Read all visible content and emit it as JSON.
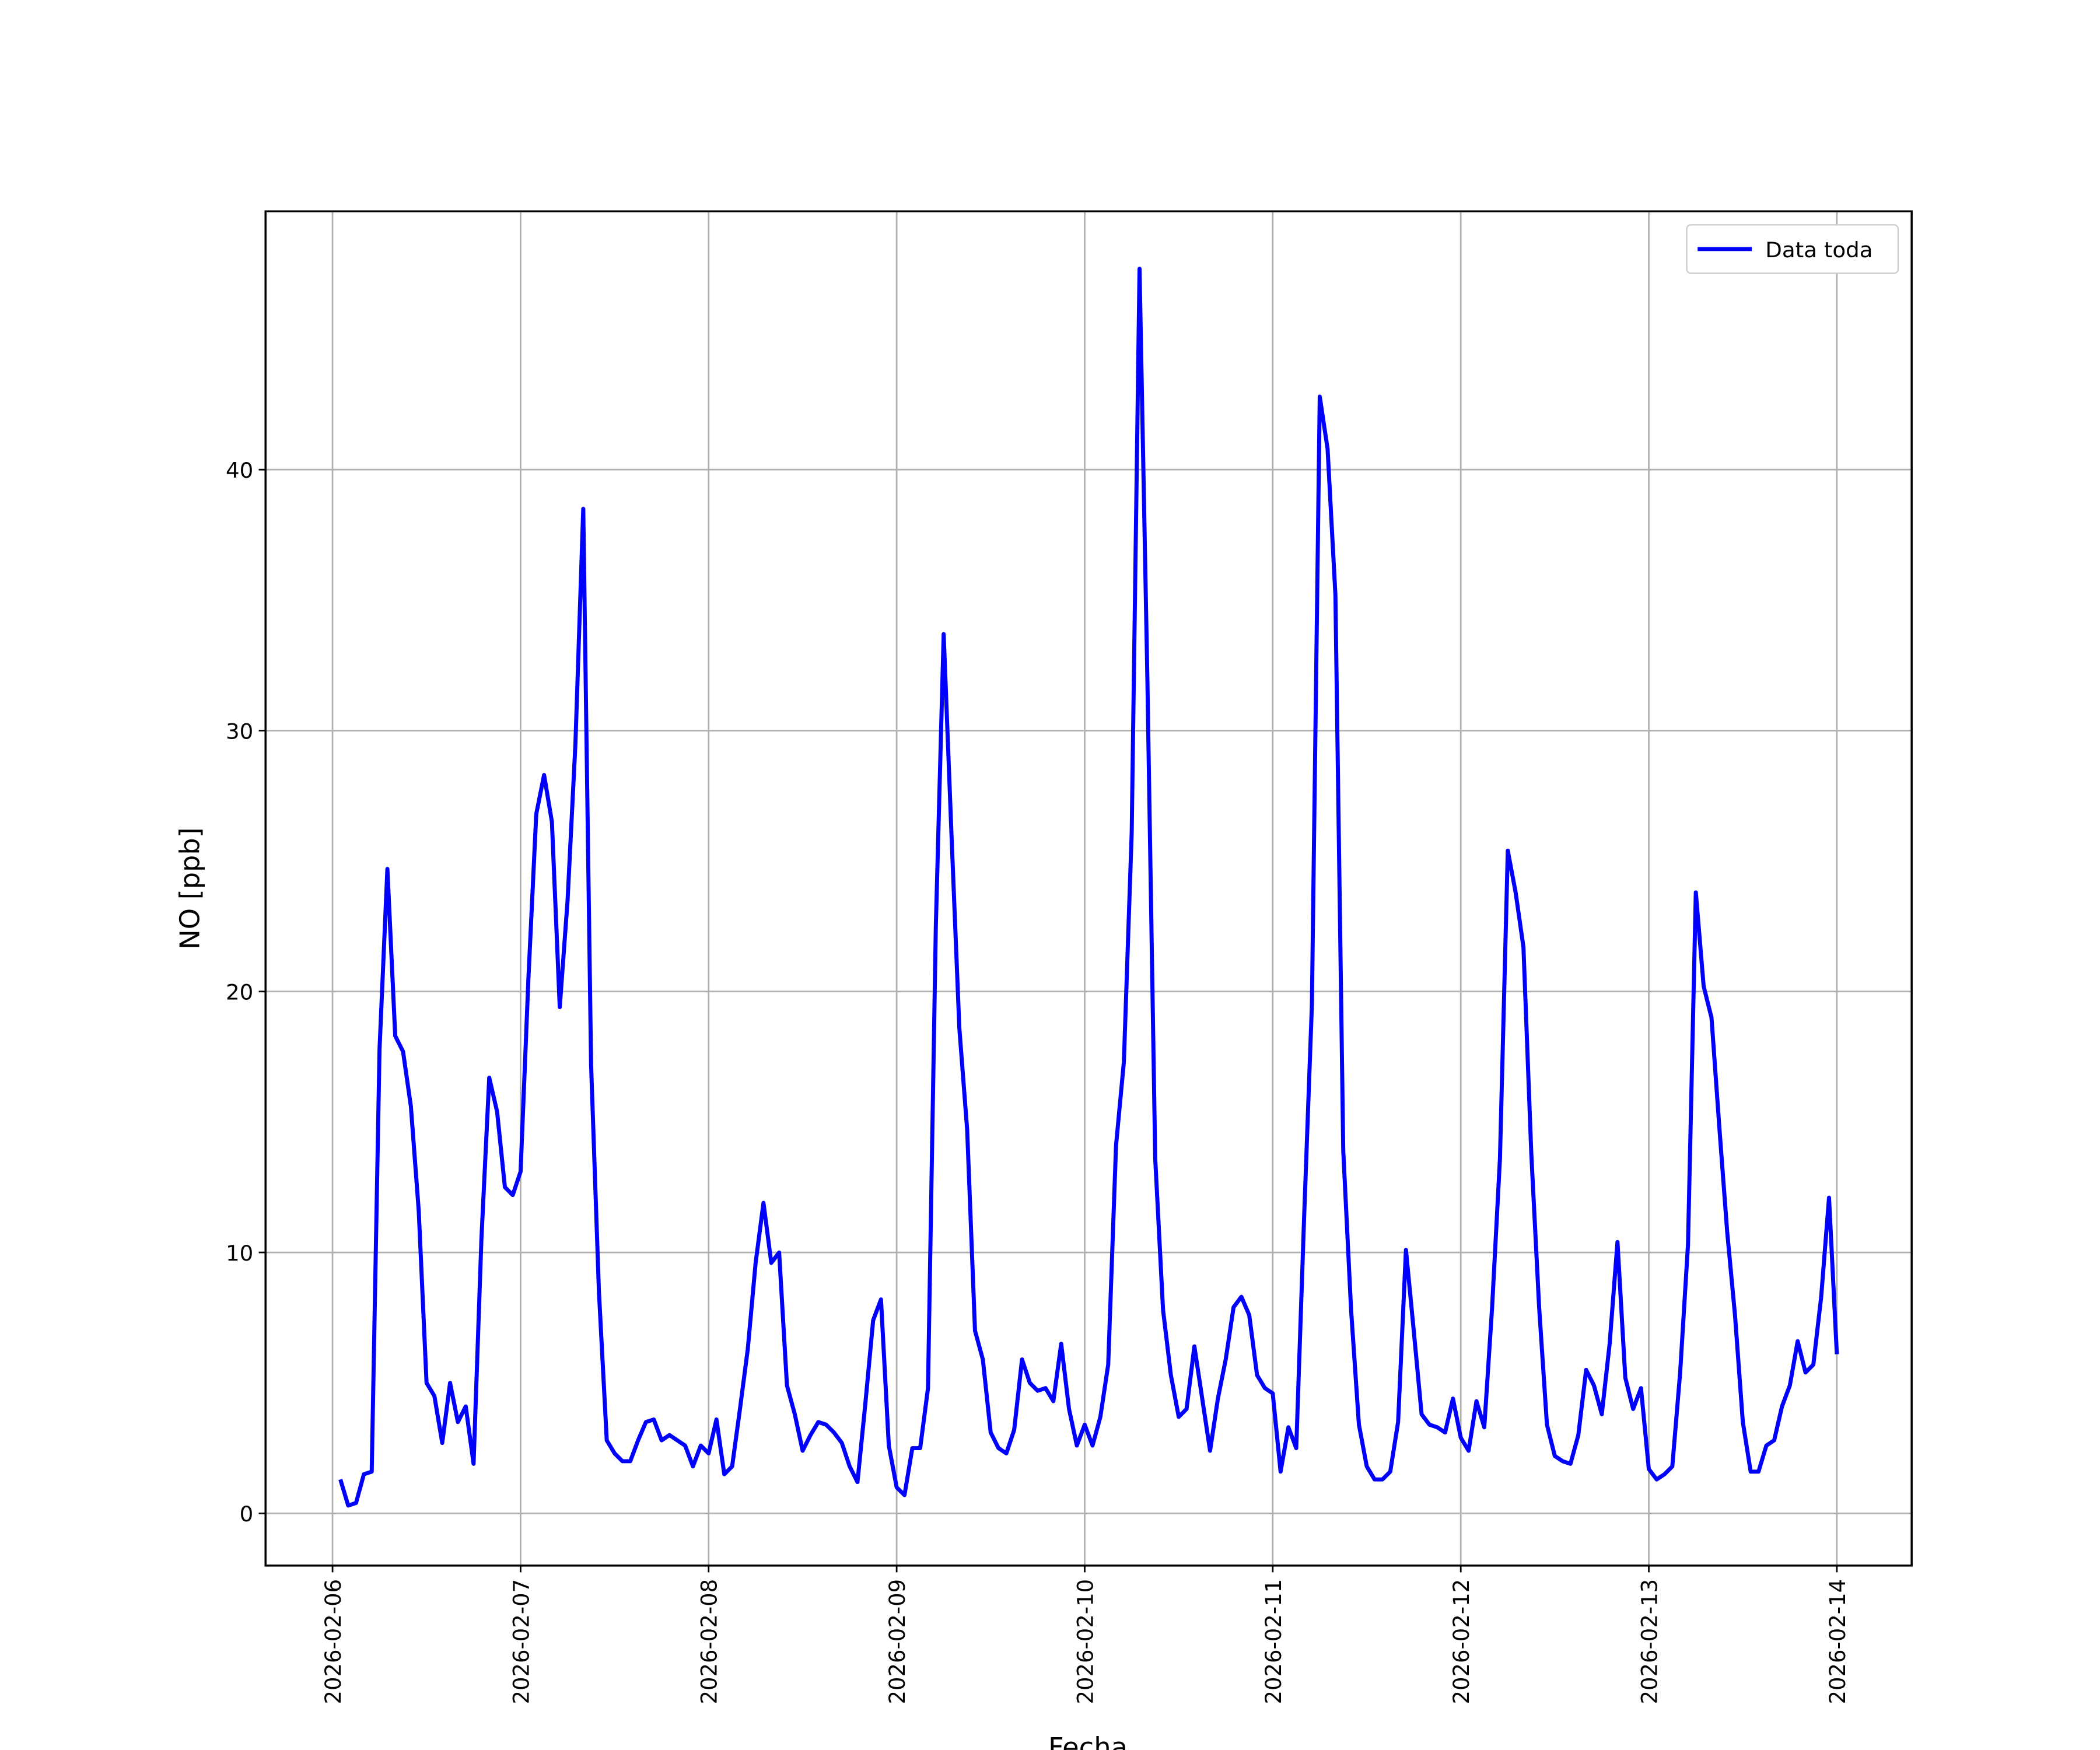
{
  "chart_data": {
    "type": "line",
    "xlabel": "Fecha",
    "ylabel": "NO [ppb]",
    "x": [
      "2026-02-06 01:00",
      "2026-02-06 02:00",
      "2026-02-06 03:00",
      "2026-02-06 04:00",
      "2026-02-06 05:00",
      "2026-02-06 06:00",
      "2026-02-06 07:00",
      "2026-02-06 08:00",
      "2026-02-06 09:00",
      "2026-02-06 10:00",
      "2026-02-06 11:00",
      "2026-02-06 12:00",
      "2026-02-06 13:00",
      "2026-02-06 14:00",
      "2026-02-06 15:00",
      "2026-02-06 16:00",
      "2026-02-06 17:00",
      "2026-02-06 18:00",
      "2026-02-06 19:00",
      "2026-02-06 20:00",
      "2026-02-06 21:00",
      "2026-02-06 22:00",
      "2026-02-06 23:00",
      "2026-02-07 00:00",
      "2026-02-07 01:00",
      "2026-02-07 02:00",
      "2026-02-07 03:00",
      "2026-02-07 04:00",
      "2026-02-07 05:00",
      "2026-02-07 06:00",
      "2026-02-07 07:00",
      "2026-02-07 08:00",
      "2026-02-07 09:00",
      "2026-02-07 10:00",
      "2026-02-07 11:00",
      "2026-02-07 12:00",
      "2026-02-07 13:00",
      "2026-02-07 14:00",
      "2026-02-07 15:00",
      "2026-02-07 16:00",
      "2026-02-07 17:00",
      "2026-02-07 18:00",
      "2026-02-07 19:00",
      "2026-02-07 20:00",
      "2026-02-07 21:00",
      "2026-02-07 22:00",
      "2026-02-07 23:00",
      "2026-02-08 00:00",
      "2026-02-08 01:00",
      "2026-02-08 02:00",
      "2026-02-08 03:00",
      "2026-02-08 04:00",
      "2026-02-08 05:00",
      "2026-02-08 06:00",
      "2026-02-08 07:00",
      "2026-02-08 08:00",
      "2026-02-08 09:00",
      "2026-02-08 10:00",
      "2026-02-08 11:00",
      "2026-02-08 12:00",
      "2026-02-08 13:00",
      "2026-02-08 14:00",
      "2026-02-08 15:00",
      "2026-02-08 16:00",
      "2026-02-08 17:00",
      "2026-02-08 18:00",
      "2026-02-08 19:00",
      "2026-02-08 20:00",
      "2026-02-08 21:00",
      "2026-02-08 22:00",
      "2026-02-08 23:00",
      "2026-02-09 00:00",
      "2026-02-09 01:00",
      "2026-02-09 02:00",
      "2026-02-09 03:00",
      "2026-02-09 04:00",
      "2026-02-09 05:00",
      "2026-02-09 06:00",
      "2026-02-09 07:00",
      "2026-02-09 08:00",
      "2026-02-09 09:00",
      "2026-02-09 10:00",
      "2026-02-09 11:00",
      "2026-02-09 12:00",
      "2026-02-09 13:00",
      "2026-02-09 14:00",
      "2026-02-09 15:00",
      "2026-02-09 16:00",
      "2026-02-09 17:00",
      "2026-02-09 18:00",
      "2026-02-09 19:00",
      "2026-02-09 20:00",
      "2026-02-09 21:00",
      "2026-02-09 22:00",
      "2026-02-09 23:00",
      "2026-02-10 00:00",
      "2026-02-10 01:00",
      "2026-02-10 02:00",
      "2026-02-10 03:00",
      "2026-02-10 04:00",
      "2026-02-10 05:00",
      "2026-02-10 06:00",
      "2026-02-10 07:00",
      "2026-02-10 08:00",
      "2026-02-10 09:00",
      "2026-02-10 10:00",
      "2026-02-10 11:00",
      "2026-02-10 12:00",
      "2026-02-10 13:00",
      "2026-02-10 14:00",
      "2026-02-10 15:00",
      "2026-02-10 16:00",
      "2026-02-10 17:00",
      "2026-02-10 18:00",
      "2026-02-10 19:00",
      "2026-02-10 20:00",
      "2026-02-10 21:00",
      "2026-02-10 22:00",
      "2026-02-10 23:00",
      "2026-02-11 00:00",
      "2026-02-11 01:00",
      "2026-02-11 02:00",
      "2026-02-11 03:00",
      "2026-02-11 04:00",
      "2026-02-11 05:00",
      "2026-02-11 06:00",
      "2026-02-11 07:00",
      "2026-02-11 08:00",
      "2026-02-11 09:00",
      "2026-02-11 10:00",
      "2026-02-11 11:00",
      "2026-02-11 12:00",
      "2026-02-11 13:00",
      "2026-02-11 14:00",
      "2026-02-11 15:00",
      "2026-02-11 16:00",
      "2026-02-11 17:00",
      "2026-02-11 18:00",
      "2026-02-11 19:00",
      "2026-02-11 20:00",
      "2026-02-11 21:00",
      "2026-02-11 22:00",
      "2026-02-11 23:00",
      "2026-02-12 00:00",
      "2026-02-12 01:00",
      "2026-02-12 02:00",
      "2026-02-12 03:00",
      "2026-02-12 04:00",
      "2026-02-12 05:00",
      "2026-02-12 06:00",
      "2026-02-12 07:00",
      "2026-02-12 08:00",
      "2026-02-12 09:00",
      "2026-02-12 10:00",
      "2026-02-12 11:00",
      "2026-02-12 12:00",
      "2026-02-12 13:00",
      "2026-02-12 14:00",
      "2026-02-12 15:00",
      "2026-02-12 16:00",
      "2026-02-12 17:00",
      "2026-02-12 18:00",
      "2026-02-12 19:00",
      "2026-02-12 20:00",
      "2026-02-12 21:00",
      "2026-02-12 22:00",
      "2026-02-12 23:00",
      "2026-02-13 00:00",
      "2026-02-13 01:00",
      "2026-02-13 02:00",
      "2026-02-13 03:00",
      "2026-02-13 04:00",
      "2026-02-13 05:00",
      "2026-02-13 06:00",
      "2026-02-13 07:00",
      "2026-02-13 08:00",
      "2026-02-13 09:00",
      "2026-02-13 10:00",
      "2026-02-13 11:00",
      "2026-02-13 12:00",
      "2026-02-13 13:00",
      "2026-02-13 14:00",
      "2026-02-13 15:00",
      "2026-02-13 16:00",
      "2026-02-13 17:00",
      "2026-02-13 18:00",
      "2026-02-13 19:00",
      "2026-02-13 20:00",
      "2026-02-13 21:00",
      "2026-02-13 22:00",
      "2026-02-13 23:00",
      "2026-02-14 00:00"
    ],
    "series": [
      {
        "name": "Data toda",
        "color": "#0000ff",
        "values": [
          1.3,
          0.3,
          0.4,
          1.5,
          1.6,
          17.8,
          24.7,
          18.3,
          17.7,
          15.6,
          11.6,
          5.0,
          4.5,
          2.7,
          5.0,
          3.5,
          4.1,
          1.9,
          10.5,
          16.7,
          15.4,
          12.5,
          12.2,
          13.1,
          20.5,
          26.8,
          28.3,
          26.5,
          19.4,
          23.5,
          29.5,
          38.5,
          17.2,
          8.5,
          2.8,
          2.3,
          2.0,
          2.0,
          2.8,
          3.5,
          3.6,
          2.8,
          3.0,
          2.8,
          2.6,
          1.8,
          2.6,
          2.3,
          3.6,
          1.5,
          1.8,
          4.0,
          6.3,
          9.6,
          11.9,
          9.6,
          10.0,
          4.9,
          3.8,
          2.4,
          3.0,
          3.5,
          3.4,
          3.1,
          2.7,
          1.8,
          1.2,
          4.2,
          7.4,
          8.2,
          2.6,
          1.0,
          0.7,
          2.5,
          2.5,
          4.8,
          22.5,
          33.7,
          26.0,
          18.6,
          14.7,
          7.0,
          5.9,
          3.1,
          2.5,
          2.3,
          3.2,
          5.9,
          5.0,
          4.7,
          4.8,
          4.3,
          6.5,
          4.0,
          2.6,
          3.4,
          2.6,
          3.7,
          5.7,
          14.1,
          17.3,
          26.1,
          47.7,
          32.0,
          13.6,
          7.8,
          5.3,
          3.7,
          4.0,
          6.4,
          4.4,
          2.4,
          4.4,
          5.9,
          7.9,
          8.3,
          7.6,
          5.3,
          4.8,
          4.6,
          1.6,
          3.3,
          2.5,
          11.3,
          19.5,
          42.8,
          40.8,
          35.2,
          13.9,
          7.8,
          3.4,
          1.8,
          1.3,
          1.3,
          1.6,
          3.5,
          10.1,
          7.0,
          3.8,
          3.4,
          3.3,
          3.1,
          4.4,
          2.9,
          2.4,
          4.3,
          3.3,
          7.9,
          13.6,
          25.4,
          23.8,
          21.7,
          13.8,
          7.9,
          3.4,
          2.2,
          2.0,
          1.9,
          3.0,
          5.5,
          4.9,
          3.8,
          6.5,
          10.4,
          5.2,
          4.0,
          4.8,
          1.7,
          1.3,
          1.5,
          1.8,
          5.4,
          10.3,
          23.8,
          20.2,
          19.0,
          14.8,
          10.8,
          7.6,
          3.5,
          1.6,
          1.6,
          2.6,
          2.8,
          4.1,
          4.9,
          6.6,
          5.4,
          5.7,
          8.3,
          12.1,
          6.1
        ]
      }
    ],
    "xlim": [
      "2026-02-05 15:27",
      "2026-02-14 09:33"
    ],
    "xticks": [
      "2026-02-06",
      "2026-02-07",
      "2026-02-08",
      "2026-02-09",
      "2026-02-10",
      "2026-02-11",
      "2026-02-12",
      "2026-02-13",
      "2026-02-14"
    ],
    "ylim": [
      -2.0,
      49.9
    ],
    "yticks": [
      0,
      10,
      20,
      30,
      40
    ],
    "grid": true,
    "legend": "upper right"
  }
}
